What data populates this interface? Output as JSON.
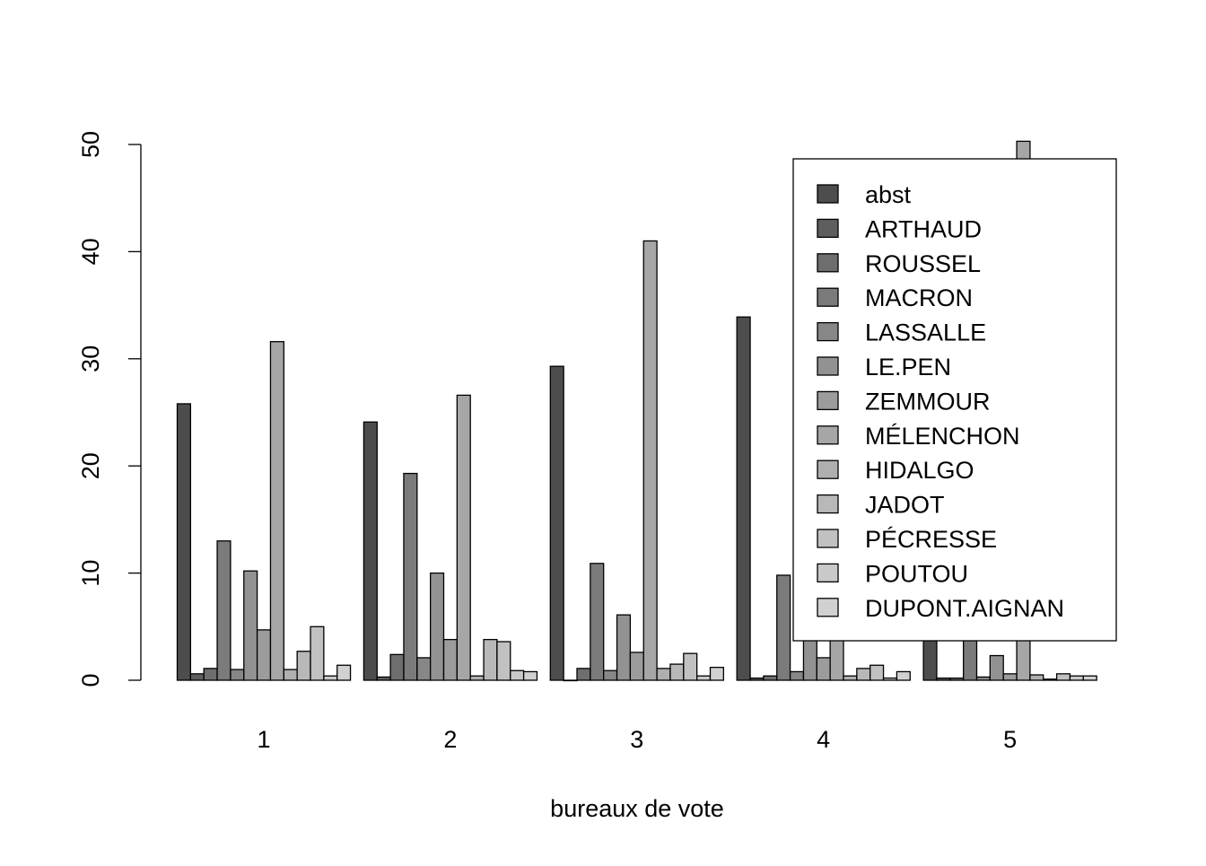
{
  "chart_data": {
    "type": "bar",
    "mode": "grouped",
    "title": "",
    "xlabel": "bureaux de vote",
    "ylabel": "",
    "ylim": [
      0,
      50
    ],
    "yticks": [
      0,
      10,
      20,
      30,
      40,
      50
    ],
    "grid": false,
    "legend_position": "top-right",
    "categories": [
      "1",
      "2",
      "3",
      "4",
      "5"
    ],
    "series": [
      {
        "name": "abst",
        "color": "#4d4d4d",
        "values": [
          25.8,
          24.1,
          29.3,
          33.9,
          10.0
        ]
      },
      {
        "name": "ARTHAUD",
        "color": "#5e5e5e",
        "values": [
          0.6,
          0.3,
          0.0,
          0.2,
          0.2
        ]
      },
      {
        "name": "ROUSSEL",
        "color": "#6e6e6e",
        "values": [
          1.1,
          2.4,
          1.1,
          0.4,
          0.2
        ]
      },
      {
        "name": "MACRON",
        "color": "#7b7b7b",
        "values": [
          13.0,
          19.3,
          10.9,
          9.8,
          10.5
        ]
      },
      {
        "name": "LASSALLE",
        "color": "#878787",
        "values": [
          1.0,
          2.1,
          0.9,
          0.8,
          0.3
        ]
      },
      {
        "name": "LE.PEN",
        "color": "#929292",
        "values": [
          10.2,
          10.0,
          6.1,
          7.5,
          2.3
        ]
      },
      {
        "name": "ZEMMOUR",
        "color": "#9c9c9c",
        "values": [
          4.7,
          3.8,
          2.6,
          2.1,
          0.6
        ]
      },
      {
        "name": "MÉLENCHON",
        "color": "#a6a6a6",
        "values": [
          31.6,
          26.6,
          41.0,
          8.0,
          50.3
        ]
      },
      {
        "name": "HIDALGO",
        "color": "#afafaf",
        "values": [
          1.0,
          0.4,
          1.1,
          0.4,
          0.5
        ]
      },
      {
        "name": "JADOT",
        "color": "#b8b8b8",
        "values": [
          2.7,
          3.8,
          1.5,
          1.1,
          0.1
        ]
      },
      {
        "name": "PÉCRESSE",
        "color": "#c1c1c1",
        "values": [
          5.0,
          3.6,
          2.5,
          1.4,
          0.6
        ]
      },
      {
        "name": "POUTOU",
        "color": "#c9c9c9",
        "values": [
          0.4,
          0.9,
          0.4,
          0.2,
          0.4
        ]
      },
      {
        "name": "DUPONT.AIGNAN",
        "color": "#d1d1d1",
        "values": [
          1.4,
          0.8,
          1.2,
          0.8,
          0.4
        ]
      }
    ]
  }
}
